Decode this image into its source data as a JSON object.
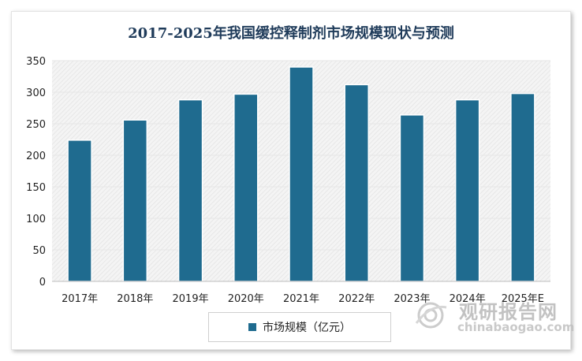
{
  "chart_data": {
    "type": "bar",
    "title": "2017-2025年我国缓控释制剂市场规模现状与预测",
    "categories": [
      "2017年",
      "2018年",
      "2019年",
      "2020年",
      "2021年",
      "2022年",
      "2023年",
      "2024年",
      "2025年E"
    ],
    "series": [
      {
        "name": "市场规模（亿元）",
        "values": [
          224,
          256,
          288,
          297,
          340,
          312,
          264,
          288,
          298
        ]
      }
    ],
    "ylim": [
      0,
      350
    ],
    "yticks": [
      0,
      50,
      100,
      150,
      200,
      250,
      300,
      350
    ],
    "xlabel": "",
    "ylabel": "",
    "legend_position": "bottom",
    "bar_color": "#1f6b8f"
  },
  "watermark": {
    "cn": "观研报告网",
    "en": "chinabaogao.com"
  }
}
